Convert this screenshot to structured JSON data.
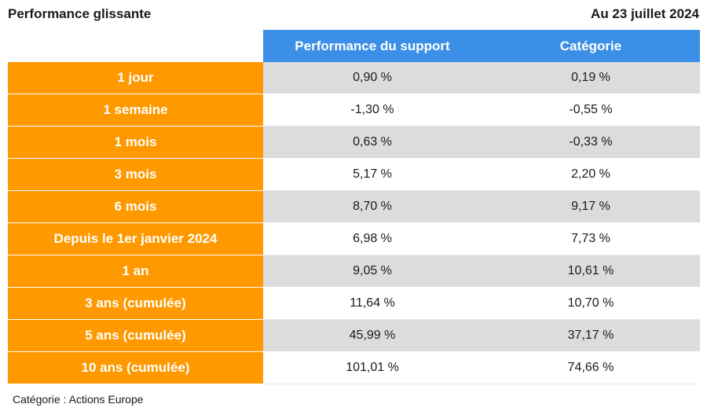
{
  "header": {
    "title": "Performance glissante",
    "date": "Au 23 juillet 2024"
  },
  "chart_data": {
    "type": "table",
    "columns": [
      "",
      "Performance du support",
      "Catégorie"
    ],
    "rows": [
      {
        "period": "1 jour",
        "support": "0,90 %",
        "categorie": "0,19 %"
      },
      {
        "period": "1 semaine",
        "support": "-1,30 %",
        "categorie": "-0,55 %"
      },
      {
        "period": "1 mois",
        "support": "0,63 %",
        "categorie": "-0,33 %"
      },
      {
        "period": "3 mois",
        "support": "5,17 %",
        "categorie": "2,20 %"
      },
      {
        "period": "6 mois",
        "support": "8,70 %",
        "categorie": "9,17 %"
      },
      {
        "period": "Depuis le 1er janvier 2024",
        "support": "6,98 %",
        "categorie": "7,73 %"
      },
      {
        "period": "1 an",
        "support": "9,05 %",
        "categorie": "10,61 %"
      },
      {
        "period": "3 ans (cumulée)",
        "support": "11,64 %",
        "categorie": "10,70 %"
      },
      {
        "period": "5 ans (cumulée)",
        "support": "45,99 %",
        "categorie": "37,17 %"
      },
      {
        "period": "10 ans (cumulée)",
        "support": "101,01 %",
        "categorie": "74,66 %"
      }
    ]
  },
  "footnote": "Catégorie : Actions Europe",
  "colors": {
    "header_blue": "#3c8fe6",
    "period_orange": "#ff9900",
    "row_gray": "#dcdcdc"
  }
}
